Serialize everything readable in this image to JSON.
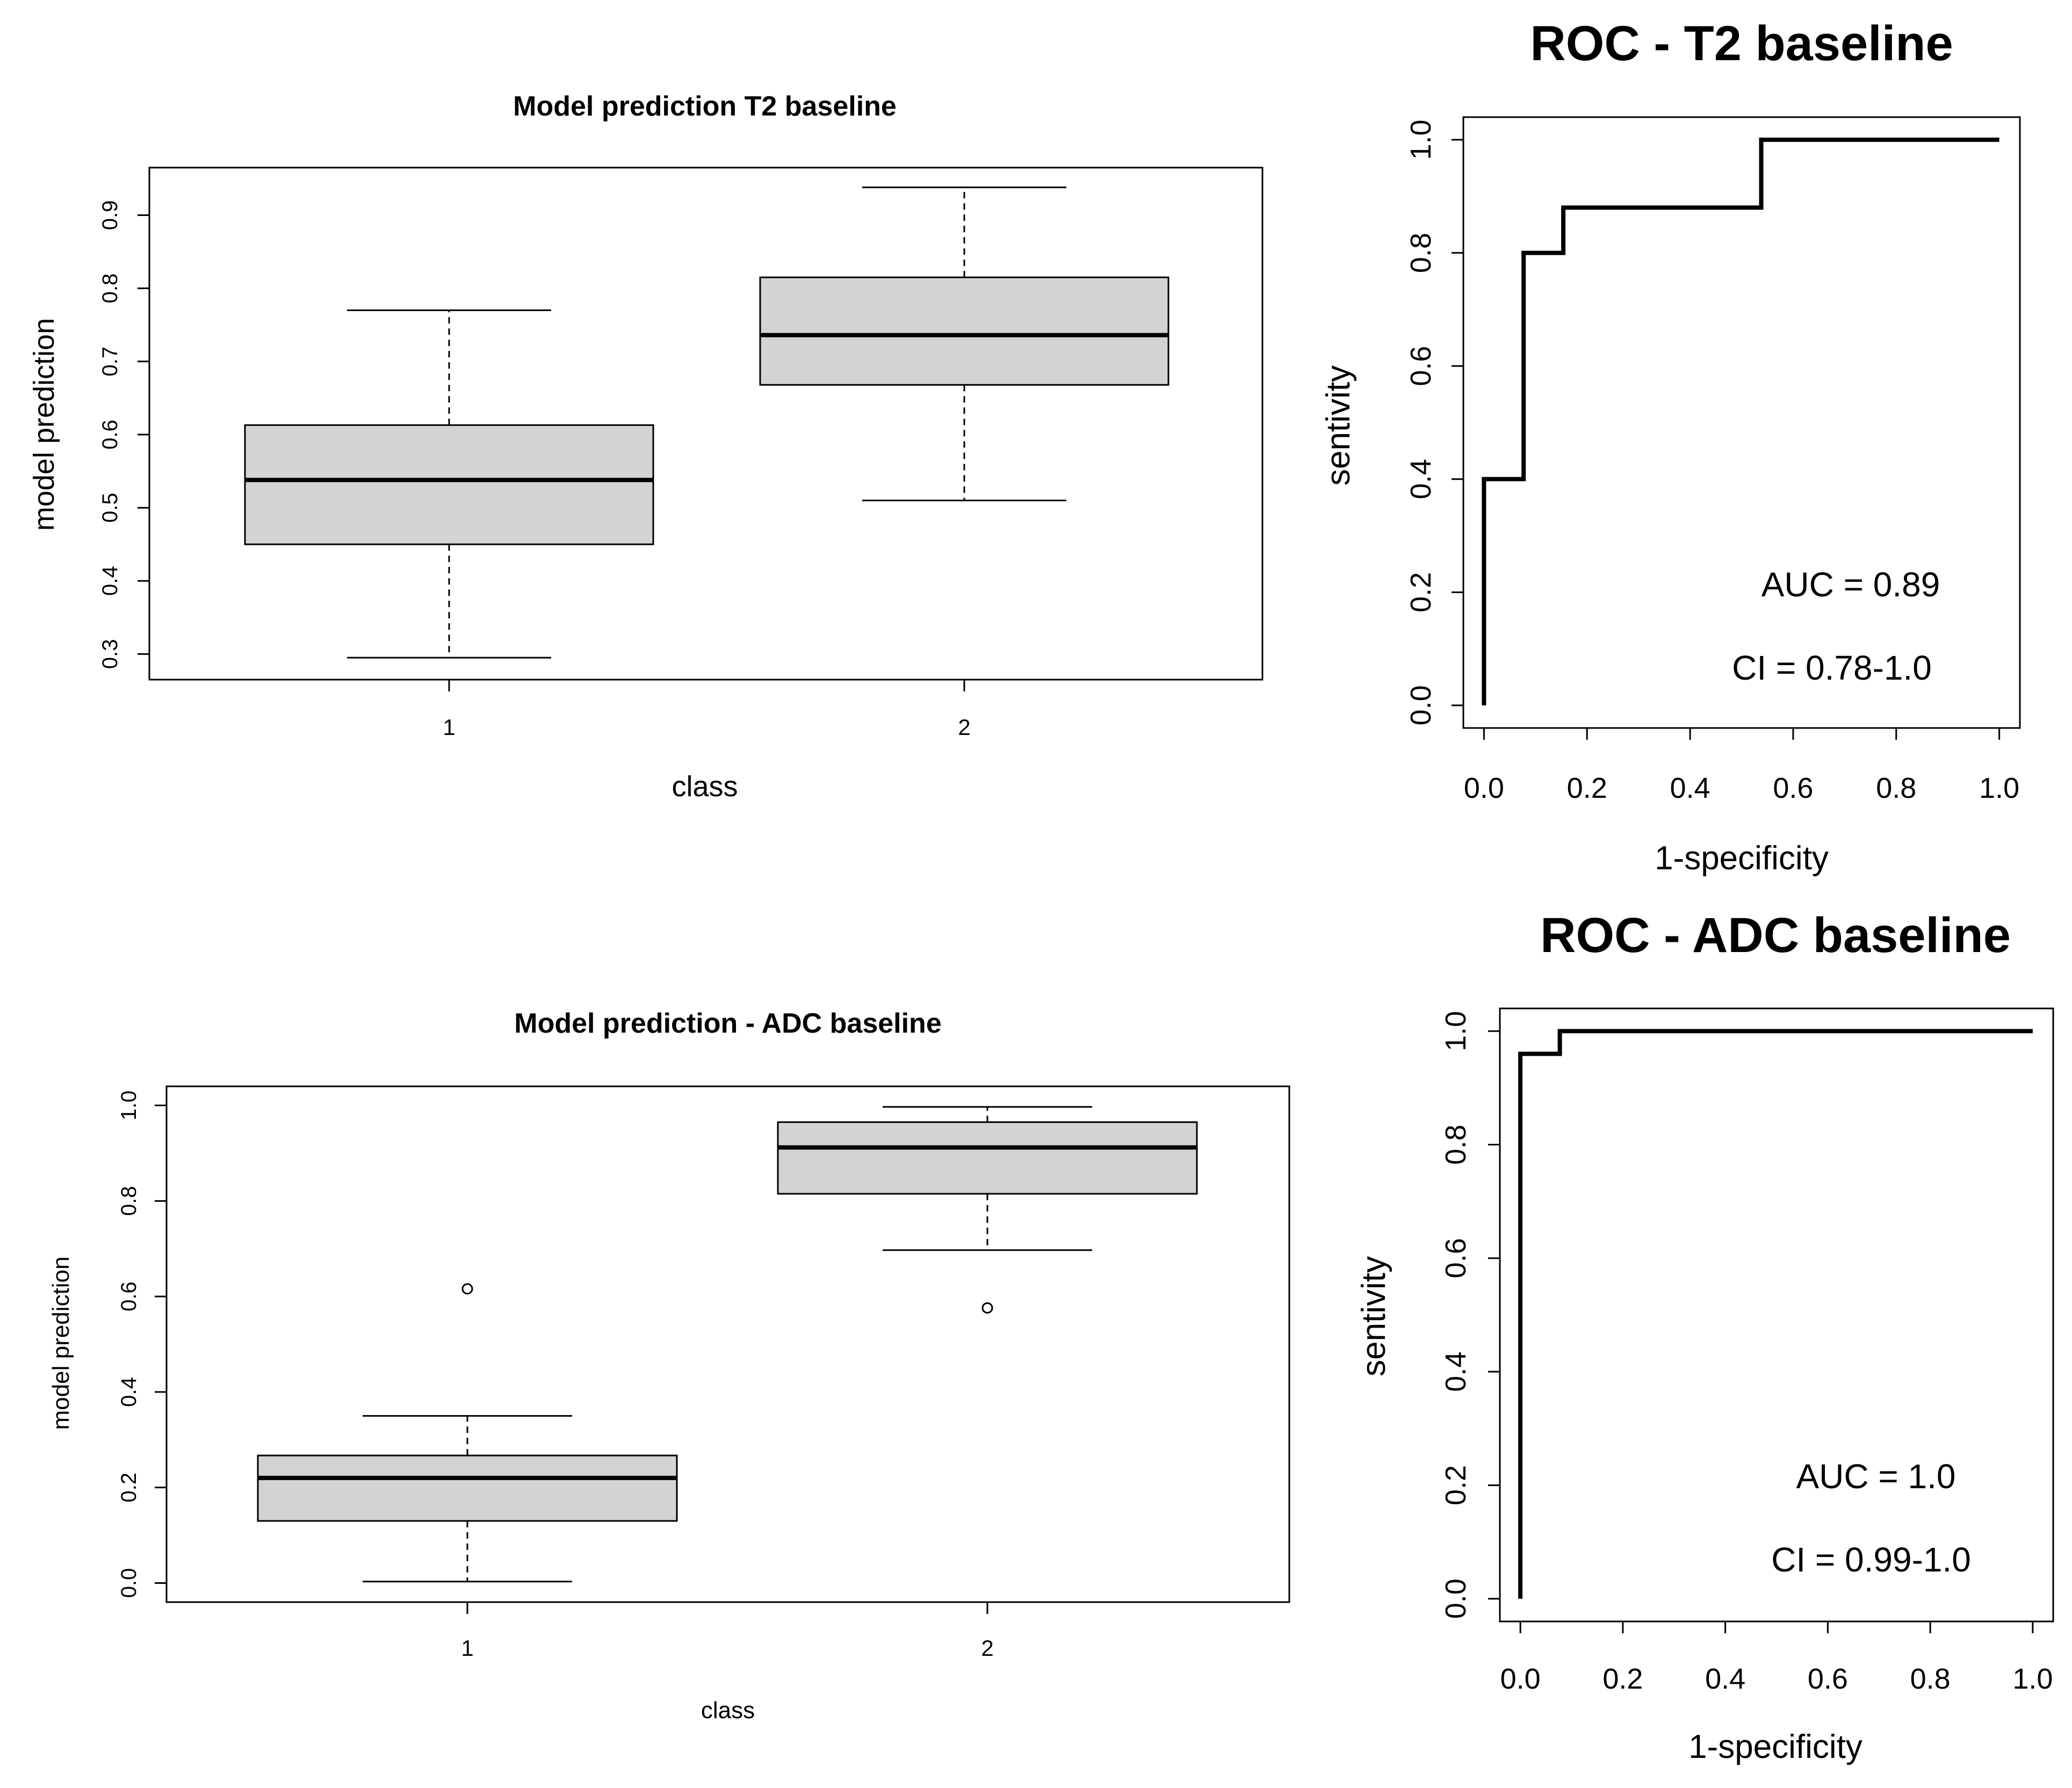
{
  "chart_data": [
    {
      "type": "box",
      "title": "Model prediction T2 baseline",
      "xlabel": "class",
      "ylabel": "model prediction",
      "categories": [
        "1",
        "2"
      ],
      "yticks": [
        "0.3",
        "0.4",
        "0.5",
        "0.6",
        "0.7",
        "0.8",
        "0.9"
      ],
      "ylim": [
        0.265,
        0.965
      ],
      "boxes": [
        {
          "category": "1",
          "min": 0.295,
          "q1": 0.45,
          "median": 0.538,
          "q3": 0.613,
          "max": 0.77,
          "outliers": []
        },
        {
          "category": "2",
          "min": 0.51,
          "q1": 0.668,
          "median": 0.736,
          "q3": 0.815,
          "max": 0.938,
          "outliers": []
        }
      ]
    },
    {
      "type": "line",
      "title": "ROC - T2 baseline",
      "xlabel": "1-specificity",
      "ylabel": "sentivity",
      "xticks": [
        "0.0",
        "0.2",
        "0.4",
        "0.6",
        "0.8",
        "1.0"
      ],
      "yticks": [
        "0.0",
        "0.2",
        "0.4",
        "0.6",
        "0.8",
        "1.0"
      ],
      "xlim": [
        -0.04,
        1.04
      ],
      "ylim": [
        -0.04,
        1.04
      ],
      "series": [
        {
          "name": "ROC",
          "x": [
            0.0,
            0.0,
            0.077,
            0.077,
            0.154,
            0.154,
            0.538,
            0.538,
            1.0
          ],
          "y": [
            0.0,
            0.4,
            0.4,
            0.8,
            0.8,
            0.88,
            0.88,
            1.0,
            1.0
          ]
        }
      ],
      "annotations": [
        "AUC = 0.89",
        "CI = 0.78-1.0"
      ]
    },
    {
      "type": "box",
      "title": "Model prediction - ADC baseline",
      "xlabel": "class",
      "ylabel": "model prediction",
      "categories": [
        "1",
        "2"
      ],
      "yticks": [
        "0.0",
        "0.2",
        "0.4",
        "0.6",
        "0.8",
        "1.0"
      ],
      "ylim": [
        -0.04,
        1.04
      ],
      "boxes": [
        {
          "category": "1",
          "min": 0.003,
          "q1": 0.13,
          "median": 0.22,
          "q3": 0.267,
          "max": 0.35,
          "outliers": [
            0.616
          ]
        },
        {
          "category": "2",
          "min": 0.697,
          "q1": 0.815,
          "median": 0.912,
          "q3": 0.965,
          "max": 0.997,
          "outliers": [
            0.576
          ]
        }
      ]
    },
    {
      "type": "line",
      "title": "ROC - ADC baseline",
      "xlabel": "1-specificity",
      "ylabel": "sentivity",
      "xticks": [
        "0.0",
        "0.2",
        "0.4",
        "0.6",
        "0.8",
        "1.0"
      ],
      "yticks": [
        "0.0",
        "0.2",
        "0.4",
        "0.6",
        "0.8",
        "1.0"
      ],
      "xlim": [
        -0.04,
        1.04
      ],
      "ylim": [
        -0.04,
        1.04
      ],
      "series": [
        {
          "name": "ROC",
          "x": [
            0.0,
            0.0,
            0.077,
            0.077,
            1.0
          ],
          "y": [
            0.0,
            0.96,
            0.96,
            1.0,
            1.0
          ]
        }
      ],
      "annotations": [
        "AUC = 1.0",
        "CI = 0.99-1.0"
      ]
    }
  ]
}
